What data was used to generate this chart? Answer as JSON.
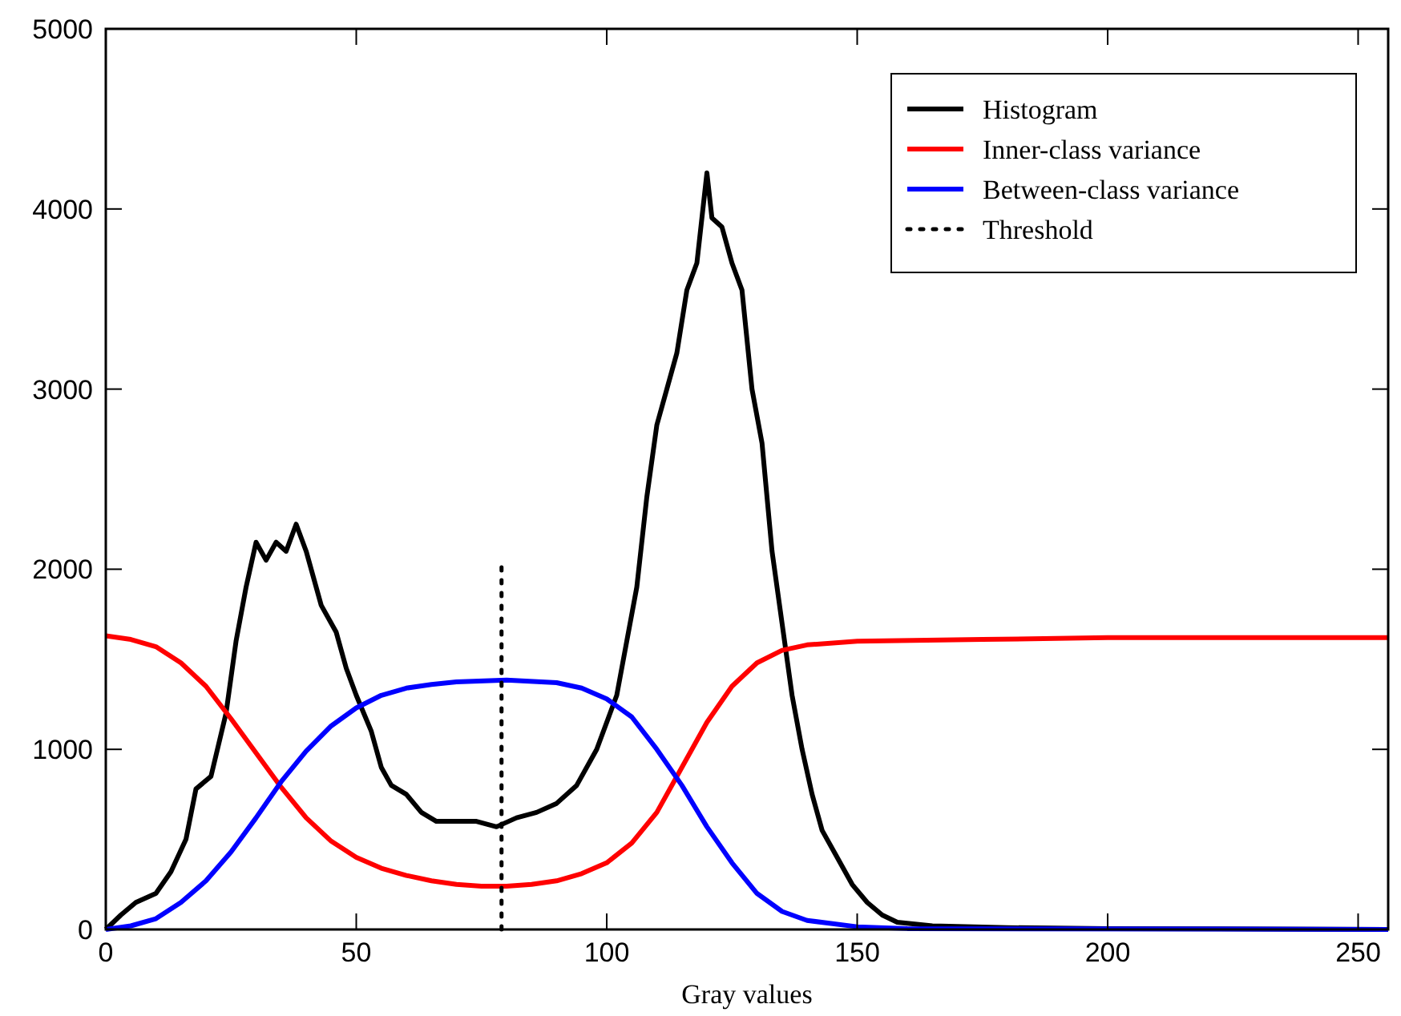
{
  "chart_data": {
    "type": "line",
    "xlabel": "Gray values",
    "xlim": [
      0,
      256
    ],
    "ylim": [
      0,
      5000
    ],
    "xticks": [
      0,
      50,
      100,
      150,
      200,
      250
    ],
    "yticks": [
      0,
      1000,
      2000,
      3000,
      4000,
      5000
    ],
    "legend": "top right",
    "grid": false,
    "series": [
      {
        "name": "Histogram",
        "color": "#000000",
        "x": [
          0,
          3,
          6,
          10,
          13,
          16,
          18,
          21,
          24,
          26,
          28,
          30,
          32,
          34,
          36,
          38,
          40,
          43,
          46,
          48,
          50,
          53,
          55,
          57,
          60,
          63,
          66,
          70,
          74,
          78,
          82,
          86,
          90,
          94,
          98,
          102,
          104,
          106,
          108,
          110,
          112,
          114,
          116,
          118,
          120,
          121,
          123,
          125,
          127,
          129,
          131,
          133,
          135,
          137,
          139,
          141,
          143,
          146,
          149,
          152,
          155,
          158,
          165,
          180,
          200,
          256
        ],
        "values": [
          0,
          80,
          150,
          200,
          320,
          500,
          780,
          850,
          1200,
          1600,
          1900,
          2150,
          2050,
          2150,
          2100,
          2250,
          2100,
          1800,
          1650,
          1450,
          1300,
          1100,
          900,
          800,
          750,
          650,
          600,
          600,
          600,
          570,
          620,
          650,
          700,
          800,
          1000,
          1300,
          1600,
          1900,
          2400,
          2800,
          3000,
          3200,
          3550,
          3700,
          4200,
          3950,
          3900,
          3700,
          3550,
          3000,
          2700,
          2100,
          1700,
          1300,
          1000,
          750,
          550,
          400,
          250,
          150,
          80,
          40,
          20,
          10,
          5,
          0
        ]
      },
      {
        "name": "Inner-class variance",
        "color": "#ff0000",
        "x": [
          0,
          5,
          10,
          15,
          20,
          25,
          30,
          35,
          40,
          45,
          50,
          55,
          60,
          65,
          70,
          75,
          80,
          85,
          90,
          95,
          100,
          105,
          110,
          115,
          120,
          125,
          130,
          135,
          140,
          150,
          175,
          200,
          256
        ],
        "values": [
          1630,
          1610,
          1570,
          1480,
          1350,
          1170,
          980,
          790,
          620,
          490,
          400,
          340,
          300,
          270,
          250,
          240,
          240,
          250,
          270,
          310,
          370,
          480,
          650,
          900,
          1150,
          1350,
          1480,
          1550,
          1580,
          1600,
          1610,
          1620,
          1620
        ]
      },
      {
        "name": "Between-class variance",
        "color": "#0000ff",
        "x": [
          0,
          5,
          10,
          15,
          20,
          25,
          30,
          35,
          40,
          45,
          50,
          55,
          60,
          65,
          70,
          80,
          90,
          95,
          100,
          105,
          110,
          115,
          120,
          125,
          130,
          135,
          140,
          150,
          160,
          256
        ],
        "values": [
          0,
          20,
          60,
          150,
          270,
          430,
          620,
          820,
          990,
          1130,
          1230,
          1300,
          1340,
          1360,
          1375,
          1385,
          1370,
          1340,
          1280,
          1180,
          1000,
          800,
          570,
          370,
          200,
          100,
          50,
          15,
          5,
          0
        ]
      },
      {
        "name": "Threshold",
        "color": "#000000",
        "line_style": "dotted",
        "x": [
          79,
          79
        ],
        "values": [
          0,
          2050
        ]
      }
    ]
  }
}
